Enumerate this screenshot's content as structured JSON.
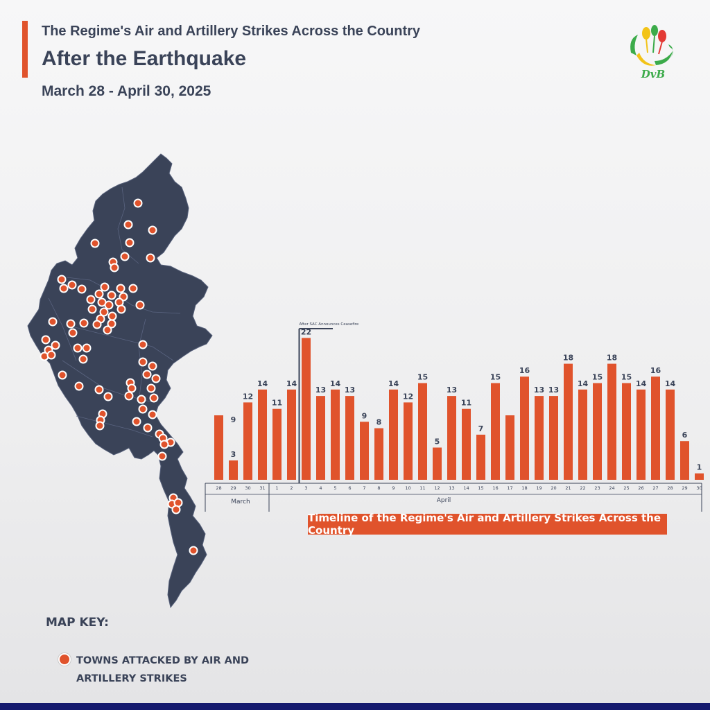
{
  "header": {
    "title_line1": "The Regime's Air and Artillery Strikes Across the Country",
    "title_line2": "After the Earthquake",
    "date_range": "March 28 - April 30, 2025"
  },
  "logo": {
    "text": "DvB"
  },
  "colors": {
    "accent": "#e0532c",
    "map_fill": "#3a4358",
    "text": "#3a4358",
    "footer": "#151a6e"
  },
  "map_key": {
    "title": "MAP KEY:",
    "item_line1": "TOWNS ATTACKED BY AIR AND",
    "item_line2": "ARTILLERY STRIKES"
  },
  "chart_data": {
    "type": "bar",
    "title": "Timeline of the Regime's Air and Artillery Strikes Across the Country",
    "annotation": "After SAC Announces Ceasefire",
    "groups": [
      "March",
      "April"
    ],
    "categories": [
      "28",
      "29",
      "30",
      "31",
      "1",
      "2",
      "3",
      "4",
      "5",
      "6",
      "7",
      "8",
      "9",
      "10",
      "11",
      "12",
      "13",
      "14",
      "15",
      "16",
      "17",
      "18",
      "19",
      "20",
      "21",
      "22",
      "23",
      "24",
      "25",
      "26",
      "27",
      "28",
      "29",
      "30"
    ],
    "values": [
      10,
      3,
      12,
      14,
      11,
      14,
      22,
      13,
      14,
      13,
      9,
      8,
      14,
      12,
      15,
      5,
      13,
      11,
      7,
      15,
      10,
      16,
      13,
      13,
      18,
      14,
      15,
      18,
      15,
      14,
      16,
      14,
      6,
      1
    ],
    "labels": [
      "",
      "3",
      "9",
      "12",
      "14",
      "11",
      "14",
      "22",
      "13",
      "14",
      "13",
      "9",
      "8",
      "14",
      "12",
      "15",
      "5",
      "13",
      "11",
      "7",
      "15",
      "",
      "16",
      "13",
      "13",
      "18",
      "14",
      "15",
      "18",
      "15",
      "14",
      "16",
      "14",
      "6",
      "1"
    ],
    "bar_labels": [
      "",
      "3",
      "12",
      "14",
      "11",
      "14",
      "22",
      "13",
      "14",
      "13",
      "9",
      "8",
      "14",
      "12",
      "15",
      "5",
      "13",
      "11",
      "7",
      "15",
      "",
      "16",
      "13",
      "13",
      "18",
      "14",
      "15",
      "18",
      "15",
      "14",
      "16",
      "14",
      "6",
      "1"
    ],
    "floating_label": "9",
    "ylim": [
      0,
      24
    ]
  }
}
